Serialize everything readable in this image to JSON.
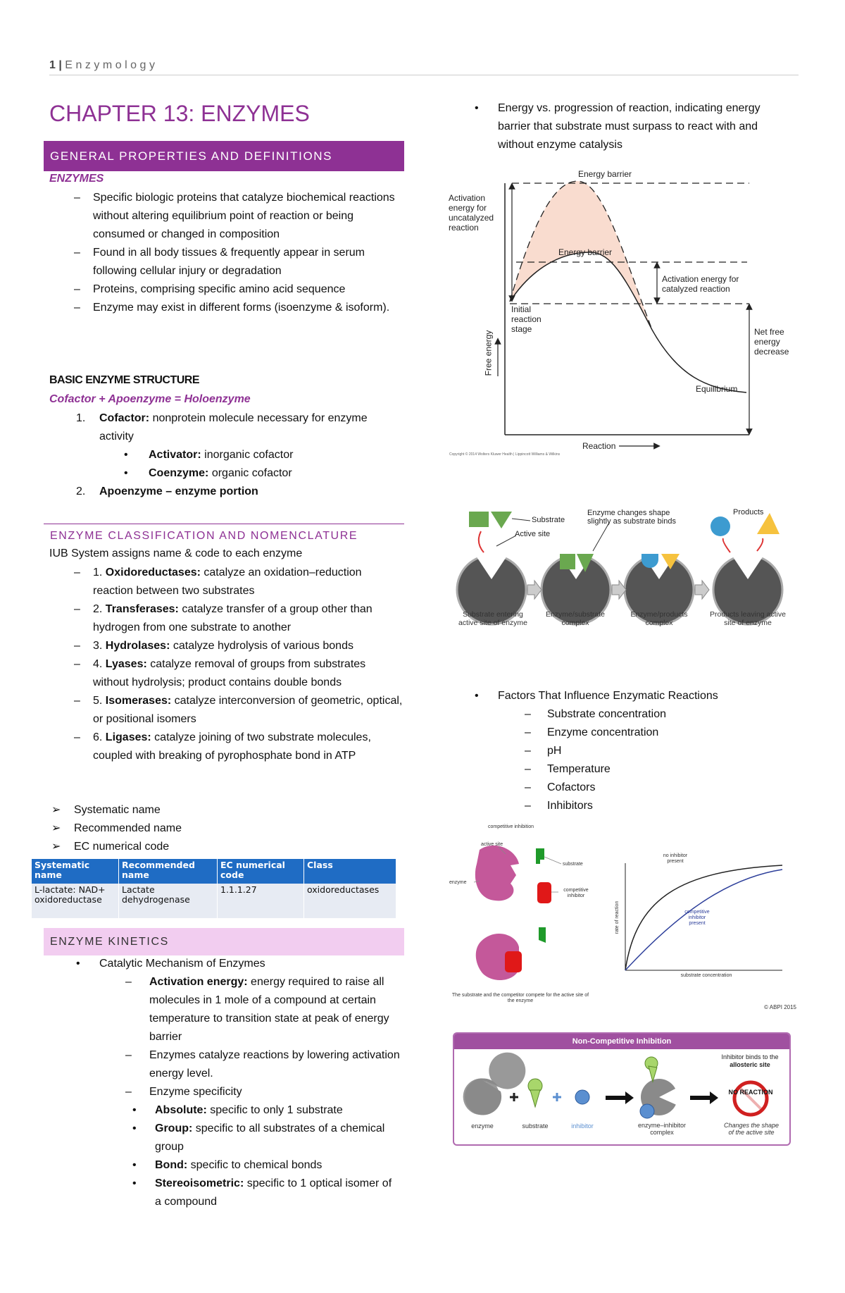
{
  "header": {
    "page_number": "1",
    "separator": "|",
    "running_title": "Enzymology"
  },
  "chapter_title": "CHAPTER 13: ENZYMES",
  "general": {
    "heading": "GENERAL PROPERTIES AND DEFINITIONS",
    "label": "ENZYMES",
    "items": [
      "Specific biologic proteins that catalyze biochemical reactions without altering equilibrium point of reaction or being consumed or changed in composition",
      "Found in all body tissues & frequently appear in serum following cellular injury or degradation",
      "Proteins, comprising specific amino acid sequence",
      "Enzyme may exist in different forms (isoenzyme & isoform)."
    ],
    "structure": {
      "heading": "BASIC ENZYME STRUCTURE",
      "formula": "Cofactor + Apoenzyme = Holoenzyme",
      "items": [
        {
          "marker": "1.",
          "term": "Cofactor:",
          "text": "nonprotein molecule necessary for enzyme activity",
          "subitems": [
            {
              "term": "Activator:",
              "text": "inorganic cofactor"
            },
            {
              "term": "Coenzyme:",
              "text": "organic cofactor"
            }
          ]
        },
        {
          "marker": "2.",
          "term": "Apoenzyme – enzyme portion"
        }
      ]
    }
  },
  "classification": {
    "heading": "ENZYME CLASSIFICATION AND NOMENCLATURE",
    "intro": "IUB System assigns name & code to each enzyme",
    "classes": [
      {
        "number": "1.",
        "term": "Oxidoreductases:",
        "text": "catalyze an oxidation–reduction reaction between two substrates"
      },
      {
        "number": "2.",
        "term": "Transferases:",
        "text": "catalyze transfer of a group other than hydrogen from one substrate to another"
      },
      {
        "number": "3.",
        "term": "Hydrolases:",
        "text": "catalyze hydrolysis of various bonds"
      },
      {
        "number": "4.",
        "term": "Lyases:",
        "text": "catalyze removal of groups from substrates without hydrolysis; product contains double bonds"
      },
      {
        "number": "5.",
        "term": "Isomerases:",
        "text": "catalyze interconversion of geometric, optical, or positional isomers"
      },
      {
        "number": "6.",
        "term": "Ligases:",
        "text": "catalyze joining of two substrate molecules, coupled with breaking of pyrophosphate bond in ATP"
      }
    ],
    "naming": [
      "Systematic name",
      "Recommended name",
      "EC numerical code"
    ],
    "table": {
      "header": [
        "Systematic name",
        "Recommended name",
        "EC numerical code",
        "Class"
      ],
      "rows": [
        [
          "L-lactate: NAD+ oxidoreductase",
          "Lactate dehydrogenase",
          "1.1.1.27",
          "oxidoreductases"
        ]
      ]
    }
  },
  "kinetics": {
    "heading": "ENZYME KINETICS",
    "bullet": "Catalytic Mechanism of Enzymes",
    "items": [
      {
        "term": "Activation energy:",
        "text": "energy required to raise all molecules in 1 mole of a compound at certain temperature to transition state at peak of energy barrier"
      },
      {
        "text": "Enzymes catalyze reactions by lowering activation energy level."
      },
      {
        "text": "Enzyme specificity"
      }
    ],
    "specificity": [
      {
        "term": "Absolute:",
        "text": "specific to only 1 substrate"
      },
      {
        "term": "Group:",
        "text": "specific to all substrates of a chemical group"
      },
      {
        "term": "Bond:",
        "text": "specific to chemical bonds"
      },
      {
        "term": "Stereoisometric:",
        "text": "specific to 1 optical isomer of a compound"
      }
    ]
  },
  "energy": {
    "intro": "Energy vs. progression of reaction, indicating energy barrier that substrate must surpass to react with and without enzyme catalysis",
    "figure": {
      "uncatalyzed_barrier": "Energy barrier",
      "uncatalyzed_label": "Activation energy for uncatalyzed reaction",
      "catalyzed_barrier": "Energy barrier",
      "catalyzed_label": "Activation energy for catalyzed reaction",
      "initial_label": "Initial reaction stage",
      "net_label": "Net free energy decrease",
      "y_axis": "Free energy",
      "equilibrium": "Equilibrium",
      "x_axis": "Reaction",
      "credit": "Copyright © 2014 Wolters Kluwer Health | Lippincott Williams & Wilkins"
    }
  },
  "mechanism_figure": {
    "substrate": "Substrate",
    "active_site": "Active site",
    "shape_change": "Enzyme changes shape slightly as substrate binds",
    "products": "Products",
    "steps": [
      "Substrate entering active site of enzyme",
      "Enzyme/substrate complex",
      "Enzyme/products complex",
      "Products leaving active site of enzyme"
    ]
  },
  "factors": {
    "title": "Factors That Influence Enzymatic Reactions",
    "items": [
      "Substrate concentration",
      "Enzyme concentration",
      "pH",
      "Temperature",
      "Cofactors",
      "Inhibitors"
    ]
  },
  "competitive_figure": {
    "title": "competitive inhibition",
    "active_site": "active site",
    "substrate": "substrate",
    "enzyme": "enzyme",
    "inhibitor": "competitive inhibitor",
    "curve_without": "no inhibitor present",
    "curve_with": "competitive inhibitor present",
    "y_axis": "rate of reaction",
    "x_axis": "substrate concentration",
    "caption": "The substrate and the competitor compete for the active site of the enzyme",
    "credit": "© ABPI 2015"
  },
  "noncompetitive_figure": {
    "title": "Non-Competitive Inhibition",
    "note": "Inhibitor binds to the",
    "note_emphasis": "allosteric site",
    "result": "NO REACTION",
    "labels": [
      "enzyme",
      "substrate",
      "inhibitor",
      "enzyme–inhibitor complex"
    ],
    "effect": "Changes the shape of the active site"
  }
}
